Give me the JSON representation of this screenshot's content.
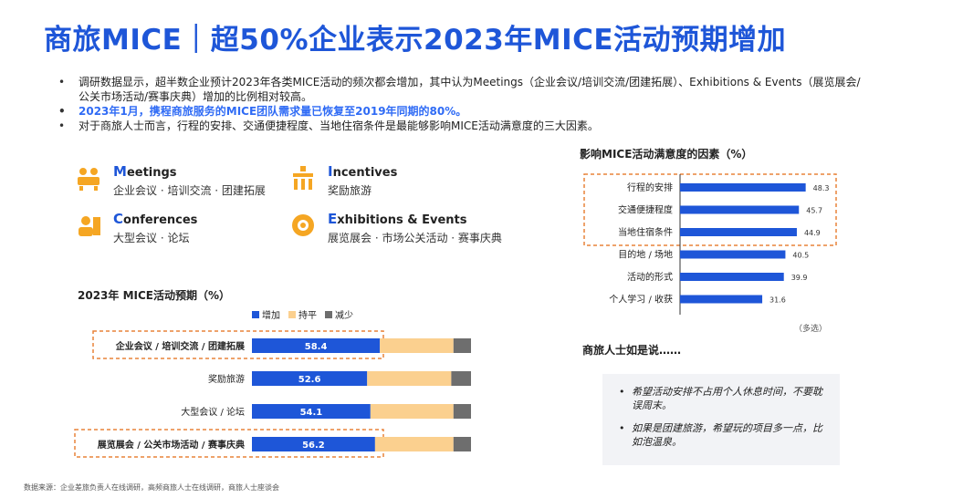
{
  "title": "商旅MICE｜超50%企业表示2023年MICE活动预期增加",
  "bullets": [
    "调研数据显示，超半数企业预计2023年各类MICE活动的频次都会增加，其中认为Meetings（企业会议/培训交流/团建拓展）、Exhibitions & Events（展览展会/公关市场活动/赛事庆典）增加的比例相对较高。",
    "2023年1月，携程商旅服务的MICE团队需求量已恢复至2019年同期的80%。",
    "对于商旅人士而言，行程的安排、交通便捷程度、当地住宿条件是最能够影响MICE活动满意度的三大因素。"
  ],
  "categories": [
    {
      "first": "M",
      "rest": "eetings",
      "sub": "企业会议 · 培训交流 · 团建拓展",
      "icon": "meeting-icon"
    },
    {
      "first": "I",
      "rest": "ncentives",
      "sub": "奖励旅游",
      "icon": "incentive-icon"
    },
    {
      "first": "C",
      "rest": "onferences",
      "sub": "大型会议 · 论坛",
      "icon": "conference-icon"
    },
    {
      "first": "E",
      "rest": "xhibitions & Events",
      "sub": "展览展会 · 市场公关活动 · 赛事庆典",
      "icon": "exhibition-icon"
    }
  ],
  "colors": {
    "accent": "#1e56d8",
    "bar_blue": "#1e56d8",
    "bar_orange": "#fbd08f",
    "bar_gray": "#6e6e6e",
    "dashed": "#e8833a"
  },
  "chart_data": [
    {
      "type": "bar",
      "orientation": "horizontal",
      "stacked": true,
      "title": "2023年 MICE活动预期（%）",
      "categories": [
        "企业会议 / 培训交流 / 团建拓展",
        "奖励旅游",
        "大型会议 / 论坛",
        "展览展会 / 公关市场活动 / 赛事庆典"
      ],
      "series": [
        {
          "name": "增加",
          "values": [
            58.4,
            52.6,
            54.1,
            56.2
          ],
          "color": "#1e56d8"
        },
        {
          "name": "持平",
          "values": [
            33.6,
            38.4,
            37.9,
            35.8
          ],
          "color": "#fbd08f"
        },
        {
          "name": "减少",
          "values": [
            8,
            9,
            8,
            8
          ],
          "color": "#6e6e6e"
        }
      ],
      "highlighted": [
        "企业会议 / 培训交流 / 团建拓展",
        "展览展会 / 公关市场活动 / 赛事庆典"
      ],
      "legend": "top",
      "xlim": [
        0,
        100
      ]
    },
    {
      "type": "bar",
      "orientation": "horizontal",
      "title": "影响MICE活动满意度的因素（%）",
      "categories": [
        "行程的安排",
        "交通便捷程度",
        "当地住宿条件",
        "目的地 / 场地",
        "活动的形式",
        "个人学习 / 收获"
      ],
      "values": [
        48.3,
        45.7,
        44.9,
        40.5,
        39.9,
        31.6
      ],
      "highlighted": [
        "行程的安排",
        "交通便捷程度",
        "当地住宿条件"
      ],
      "note": "（多选）",
      "xlim": [
        0,
        60
      ]
    }
  ],
  "quotes": {
    "title": "商旅人士如是说……",
    "items": [
      "希望活动安排不占用个人休息时间，不要耽误周末。",
      "如果是团建旅游，希望玩的项目多一点，比如泡温泉。"
    ]
  },
  "source": "数据来源：企业差旅负责人在线调研，高频商旅人士在线调研，商旅人士座谈会"
}
